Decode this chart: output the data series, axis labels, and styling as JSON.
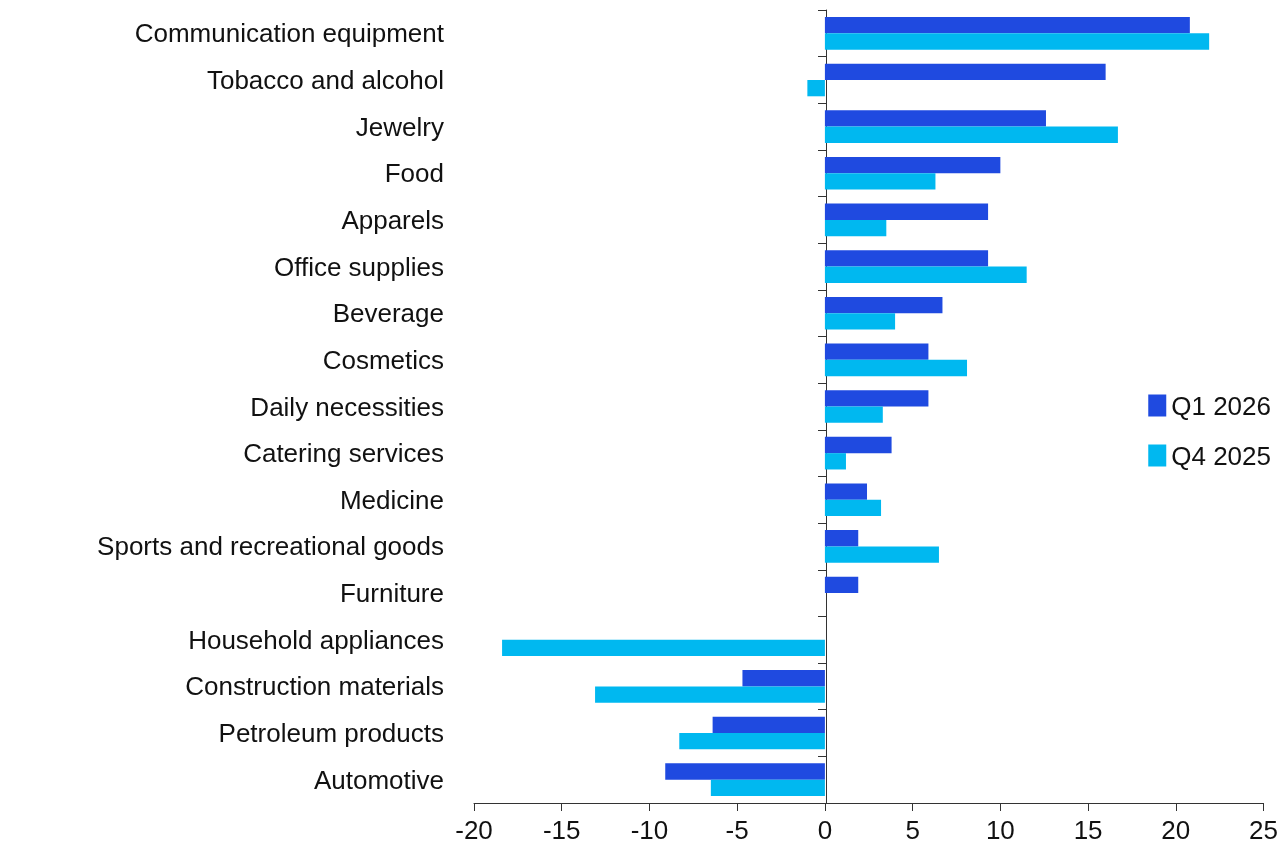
{
  "chart_data": {
    "type": "bar",
    "orientation": "horizontal",
    "categories": [
      "Communication equipment",
      "Tobacco and alcohol",
      "Jewelry",
      "Food",
      "Apparels",
      "Office supplies",
      "Beverage",
      "Cosmetics",
      "Daily necessities",
      "Catering services",
      "Medicine",
      "Sports and recreational goods",
      "Furniture",
      "Household appliances",
      "Construction materials",
      "Petroleum products",
      "Automotive"
    ],
    "series": [
      {
        "name": "Q1 2026",
        "color": "#1f4ae0",
        "values": [
          20.8,
          16.0,
          12.6,
          10.0,
          9.3,
          9.3,
          6.7,
          5.9,
          5.9,
          3.8,
          2.4,
          1.9,
          1.9,
          null,
          -4.7,
          -6.4,
          -9.1
        ]
      },
      {
        "name": "Q4 2025",
        "color": "#00b8f0",
        "values": [
          21.9,
          -1.0,
          16.7,
          6.3,
          3.5,
          11.5,
          4.0,
          8.1,
          3.3,
          1.2,
          3.2,
          6.5,
          0,
          -18.4,
          -13.1,
          -8.3,
          -6.5
        ]
      }
    ],
    "xlim": [
      -20,
      25
    ],
    "xticks": [
      -20,
      -15,
      -10,
      -5,
      0,
      5,
      10,
      15,
      20,
      25
    ],
    "legend": "right"
  }
}
